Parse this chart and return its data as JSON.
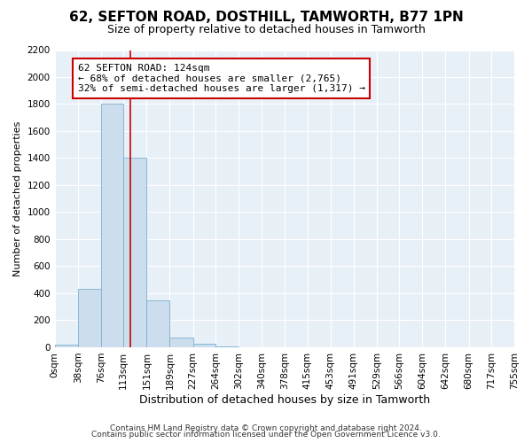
{
  "title": "62, SEFTON ROAD, DOSTHILL, TAMWORTH, B77 1PN",
  "subtitle": "Size of property relative to detached houses in Tamworth",
  "xlabel": "Distribution of detached houses by size in Tamworth",
  "ylabel": "Number of detached properties",
  "bar_color": "#ccdded",
  "bar_edge_color": "#7ab0d0",
  "bin_edges": [
    0,
    38,
    76,
    113,
    151,
    189,
    227,
    264,
    302,
    340,
    378,
    415,
    453,
    491,
    529,
    566,
    604,
    642,
    680,
    717,
    755
  ],
  "bin_labels": [
    "0sqm",
    "38sqm",
    "76sqm",
    "113sqm",
    "151sqm",
    "189sqm",
    "227sqm",
    "264sqm",
    "302sqm",
    "340sqm",
    "378sqm",
    "415sqm",
    "453sqm",
    "491sqm",
    "529sqm",
    "566sqm",
    "604sqm",
    "642sqm",
    "680sqm",
    "717sqm",
    "755sqm"
  ],
  "bar_heights": [
    20,
    430,
    1800,
    1400,
    350,
    75,
    25,
    5,
    0,
    0,
    0,
    0,
    0,
    0,
    0,
    0,
    0,
    0,
    0,
    0
  ],
  "property_size": 124,
  "vline_color": "#cc0000",
  "annotation_line1": "62 SEFTON ROAD: 124sqm",
  "annotation_line2": "← 68% of detached houses are smaller (2,765)",
  "annotation_line3": "32% of semi-detached houses are larger (1,317) →",
  "annotation_box_color": "#ffffff",
  "annotation_box_edge_color": "#cc0000",
  "ylim": [
    0,
    2200
  ],
  "yticks": [
    0,
    200,
    400,
    600,
    800,
    1000,
    1200,
    1400,
    1600,
    1800,
    2000,
    2200
  ],
  "footer_line1": "Contains HM Land Registry data © Crown copyright and database right 2024.",
  "footer_line2": "Contains public sector information licensed under the Open Government Licence v3.0.",
  "background_color": "#ffffff",
  "plot_bg_color": "#e8f0f7",
  "grid_color": "#ffffff",
  "title_fontsize": 11,
  "subtitle_fontsize": 9,
  "xlabel_fontsize": 9,
  "ylabel_fontsize": 8,
  "tick_fontsize": 7.5,
  "annotation_fontsize": 8,
  "footer_fontsize": 6.5
}
